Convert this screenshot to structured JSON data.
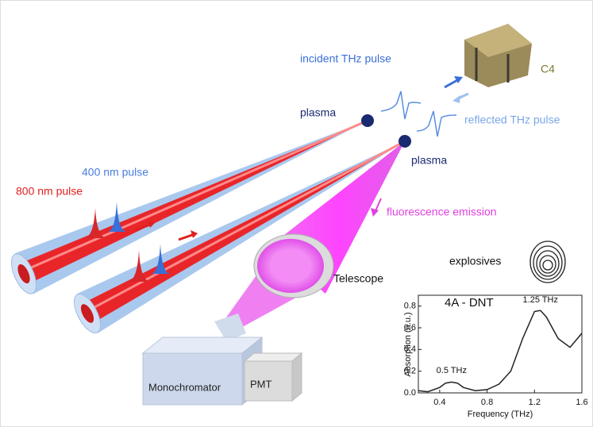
{
  "labels": {
    "incident": "incident THz pulse",
    "c4": "C4",
    "plasma_top": "plasma",
    "reflected": "reflected THz pulse",
    "plasma_bottom": "plasma",
    "pulse_400": "400 nm pulse",
    "pulse_800": "800 nm pulse",
    "fluorescence": "fluorescence emission",
    "explosives": "explosives",
    "telescope": "Telescope",
    "monochromator": "Monochromator",
    "pmt": "PMT"
  },
  "chart_data": {
    "type": "line",
    "title": "4A - DNT",
    "x_label": "Frequency (THz)",
    "y_label": "Absorption (a.u.)",
    "x": [
      0.22,
      0.3,
      0.4,
      0.45,
      0.5,
      0.55,
      0.6,
      0.7,
      0.8,
      0.9,
      1.0,
      1.1,
      1.2,
      1.25,
      1.3,
      1.4,
      1.5,
      1.6
    ],
    "series": [
      {
        "color": "#222222",
        "values": [
          0.02,
          0.01,
          0.05,
          0.09,
          0.1,
          0.09,
          0.05,
          0.02,
          0.03,
          0.08,
          0.2,
          0.5,
          0.75,
          0.76,
          0.7,
          0.5,
          0.42,
          0.55
        ]
      }
    ],
    "xlim": [
      0.22,
      1.6
    ],
    "ylim": [
      0,
      0.9
    ],
    "xticks": [
      0.4,
      0.8,
      1.2,
      1.6
    ],
    "yticks": [
      {
        "value": 0,
        "label": "0.0"
      },
      0.2,
      0.4,
      0.6,
      0.8
    ],
    "annotations": [
      "0.5 THz",
      "1.25 THz"
    ]
  }
}
